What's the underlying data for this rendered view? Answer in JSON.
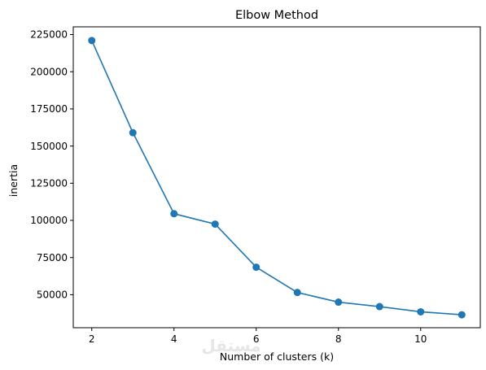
{
  "chart_data": {
    "type": "line",
    "title": "Elbow Method",
    "xlabel": "Number of clusters (k)",
    "ylabel": "inertia",
    "x": [
      2,
      3,
      4,
      5,
      6,
      7,
      8,
      9,
      10,
      11
    ],
    "series": [
      {
        "values": [
          221000,
          159000,
          104500,
          97500,
          68500,
          51500,
          45000,
          42000,
          38500,
          36500
        ],
        "color": "#1f77b4",
        "marker": "circle"
      }
    ],
    "xlim": [
      1.55,
      11.45
    ],
    "ylim": [
      27800,
      230200
    ],
    "xticks": [
      2,
      4,
      6,
      8,
      10
    ],
    "yticks": [
      50000,
      75000,
      100000,
      125000,
      150000,
      175000,
      200000,
      225000
    ],
    "grid": false,
    "legend": "none"
  },
  "watermark": "مستقل"
}
